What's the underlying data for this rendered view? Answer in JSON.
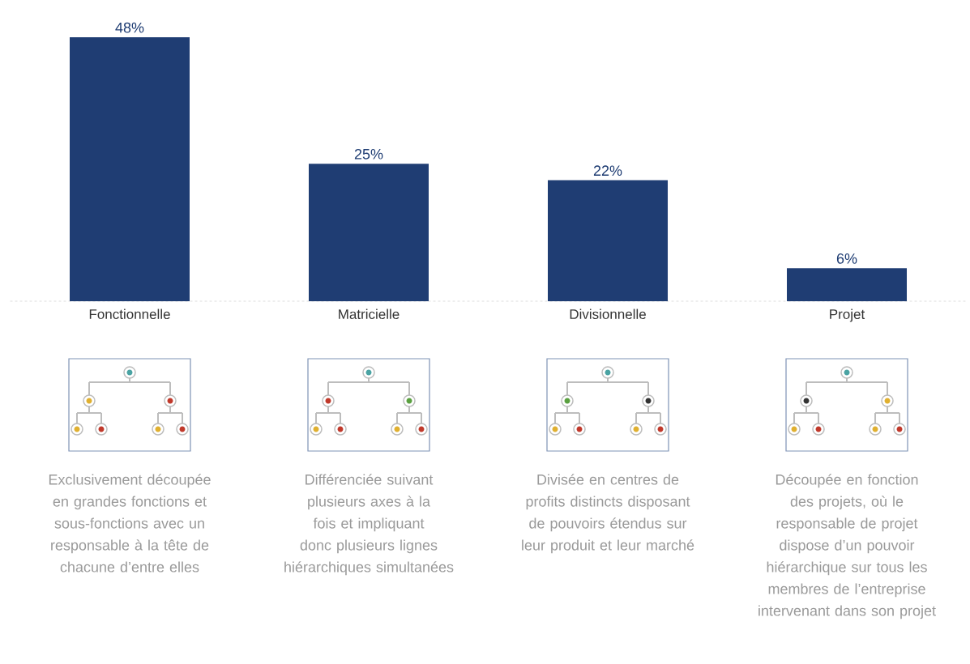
{
  "chart_data": {
    "type": "bar",
    "categories": [
      "Fonctionnelle",
      "Matricielle",
      "Divisionnelle",
      "Projet"
    ],
    "values": [
      48,
      25,
      22,
      6
    ],
    "color": "#1f3d73",
    "value_labels": [
      "48%",
      "25%",
      "22%",
      "6%"
    ],
    "annotations": [
      "Exclusivement découpée en grandes fonctions et sous-fonctions avec un responsable à la tête de chacune d’entre elles",
      "Différenciée suivant plusieurs axes à la fois et impliquant donc plusieurs lignes hiérarchiques simultanées",
      "Divisée en centres de profits distincts disposant de pouvoirs étendus sur leur produit et leur marché",
      "Découpée en fonction des projets, où le responsable de projet dispose d’un pouvoir hiérarchique sur tous les membres de l’entreprise intervenant dans son projet"
    ]
  }
}
